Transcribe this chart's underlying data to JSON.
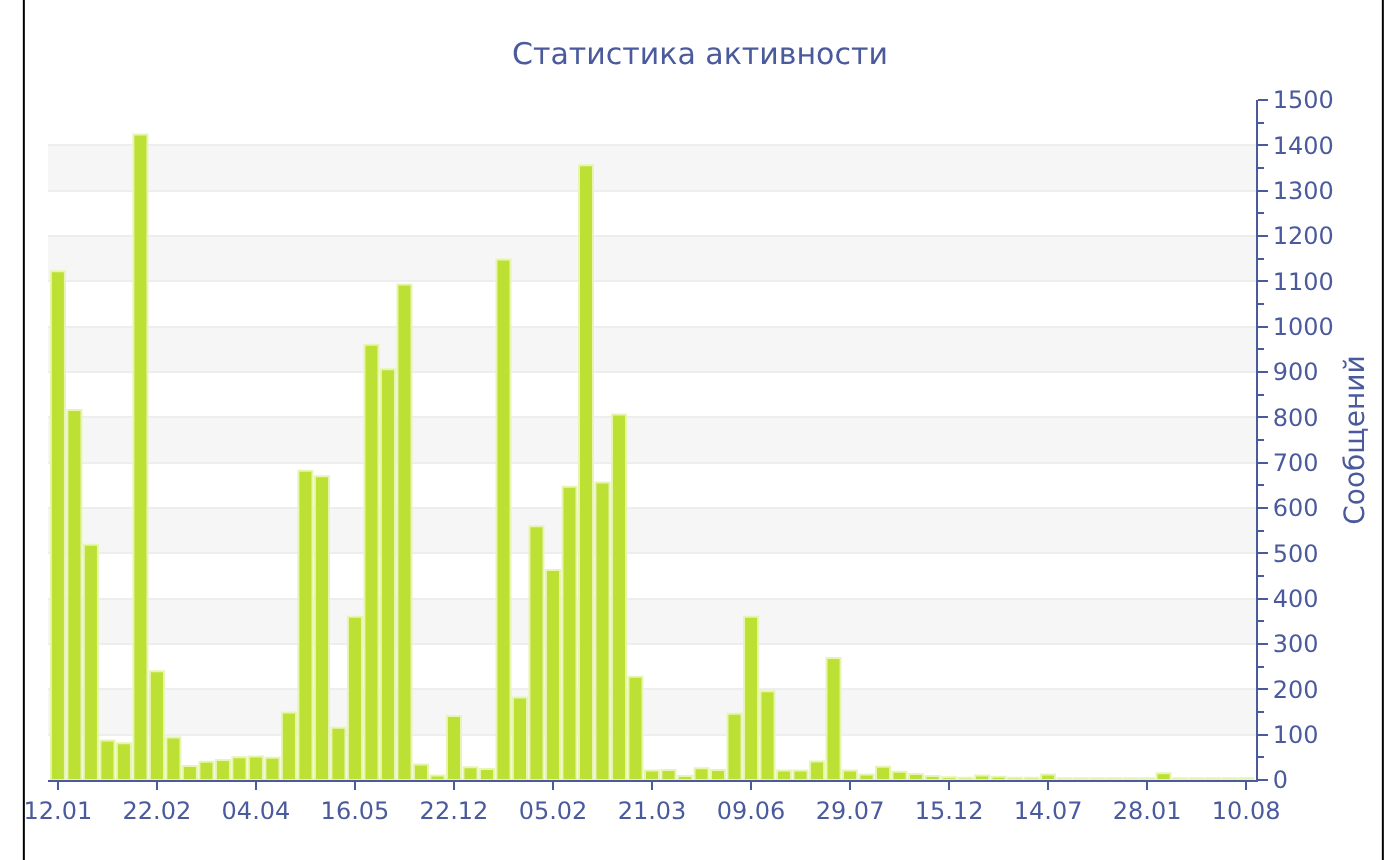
{
  "chart_data": {
    "type": "bar",
    "title": "Статистика активности",
    "ylabel": "Сообщений",
    "categories": [
      "12.01",
      null,
      null,
      null,
      null,
      null,
      "22.02",
      null,
      null,
      null,
      null,
      null,
      "04.04",
      null,
      null,
      null,
      null,
      null,
      "16.05",
      null,
      null,
      null,
      null,
      null,
      "22.12",
      null,
      null,
      null,
      null,
      null,
      "05.02",
      null,
      null,
      null,
      null,
      null,
      "21.03",
      null,
      null,
      null,
      null,
      null,
      "09.06",
      null,
      null,
      null,
      null,
      null,
      "29.07",
      null,
      null,
      null,
      null,
      null,
      "15.12",
      null,
      null,
      null,
      null,
      null,
      "14.07",
      null,
      null,
      null,
      null,
      null,
      "28.01",
      null,
      null,
      null,
      null,
      null,
      "10.08"
    ],
    "values": [
      1122,
      816,
      519,
      87,
      81,
      1424,
      240,
      94,
      31,
      40,
      44,
      50,
      52,
      49,
      149,
      682,
      670,
      115,
      360,
      960,
      906,
      1093,
      34,
      10,
      141,
      28,
      24,
      1148,
      182,
      560,
      463,
      647,
      1356,
      656,
      806,
      228,
      21,
      22,
      9,
      26,
      22,
      146,
      360,
      196,
      21,
      21,
      41,
      269,
      21,
      12,
      29,
      18,
      13,
      9,
      6,
      5,
      10,
      7,
      5,
      5,
      12,
      4,
      4,
      4,
      4,
      4,
      4,
      15,
      4,
      4,
      4,
      4,
      4
    ],
    "color": "#bce033",
    "ylim": [
      0,
      1500
    ],
    "yticks": [
      0,
      100,
      200,
      300,
      400,
      500,
      600,
      700,
      800,
      900,
      1000,
      1100,
      1200,
      1300,
      1400,
      1500
    ],
    "grid": "y"
  }
}
